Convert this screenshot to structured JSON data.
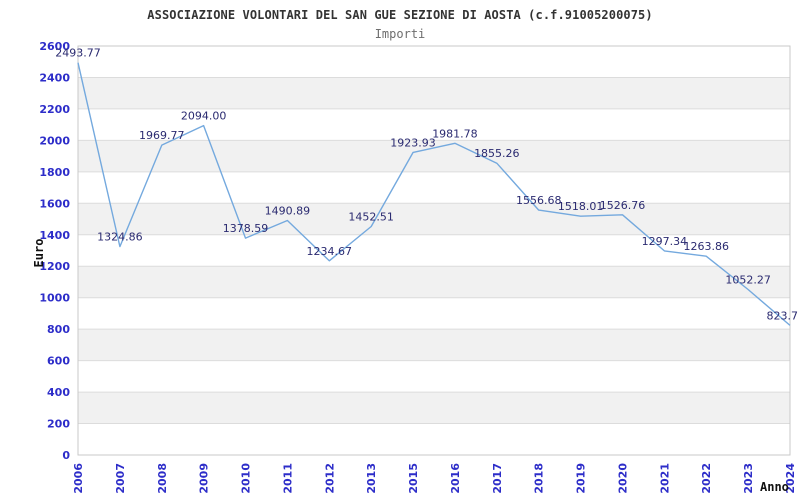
{
  "chart_data": {
    "type": "line",
    "title": "ASSOCIAZIONE VOLONTARI DEL SAN GUE SEZIONE DI AOSTA (c.f.91005200075)",
    "subtitle": "Importi",
    "xlabel": "Anno",
    "ylabel": "Euro",
    "categories": [
      "2006",
      "2007",
      "2008",
      "2009",
      "2010",
      "2011",
      "2012",
      "2013",
      "2015",
      "2016",
      "2017",
      "2018",
      "2019",
      "2020",
      "2021",
      "2022",
      "2023",
      "2024"
    ],
    "values": [
      2493.77,
      1324.86,
      1969.77,
      2094.0,
      1378.59,
      1490.89,
      1234.67,
      1452.51,
      1923.93,
      1981.78,
      1855.26,
      1556.68,
      1518.01,
      1526.76,
      1297.34,
      1263.86,
      1052.27,
      823.7
    ],
    "point_labels": [
      "2493.77",
      "1324.86",
      "1969.77",
      "2094.00",
      "1378.59",
      "1490.89",
      "1234.67",
      "1452.51",
      "1923.93",
      "1981.78",
      "1855.26",
      "1556.68",
      "1518.01",
      "1526.76",
      "1297.34",
      "1263.86",
      "1052.27",
      "823.7"
    ],
    "ylim": [
      0,
      2600
    ],
    "ytick_step": 200,
    "grid": "horizontal-bands-alternating",
    "legend": "none",
    "colors": {
      "line": "#74a9de",
      "axis_text": "#2d2dc9",
      "point_label": "#2a2a70",
      "band": "#f1f1f1",
      "gridline": "#dcdcdc",
      "plot_border": "#c9c9c9",
      "title_text": "#333333",
      "subtitle_text": "#6e6e6e",
      "axis_title_text": "#111111",
      "background": "#ffffff"
    }
  }
}
